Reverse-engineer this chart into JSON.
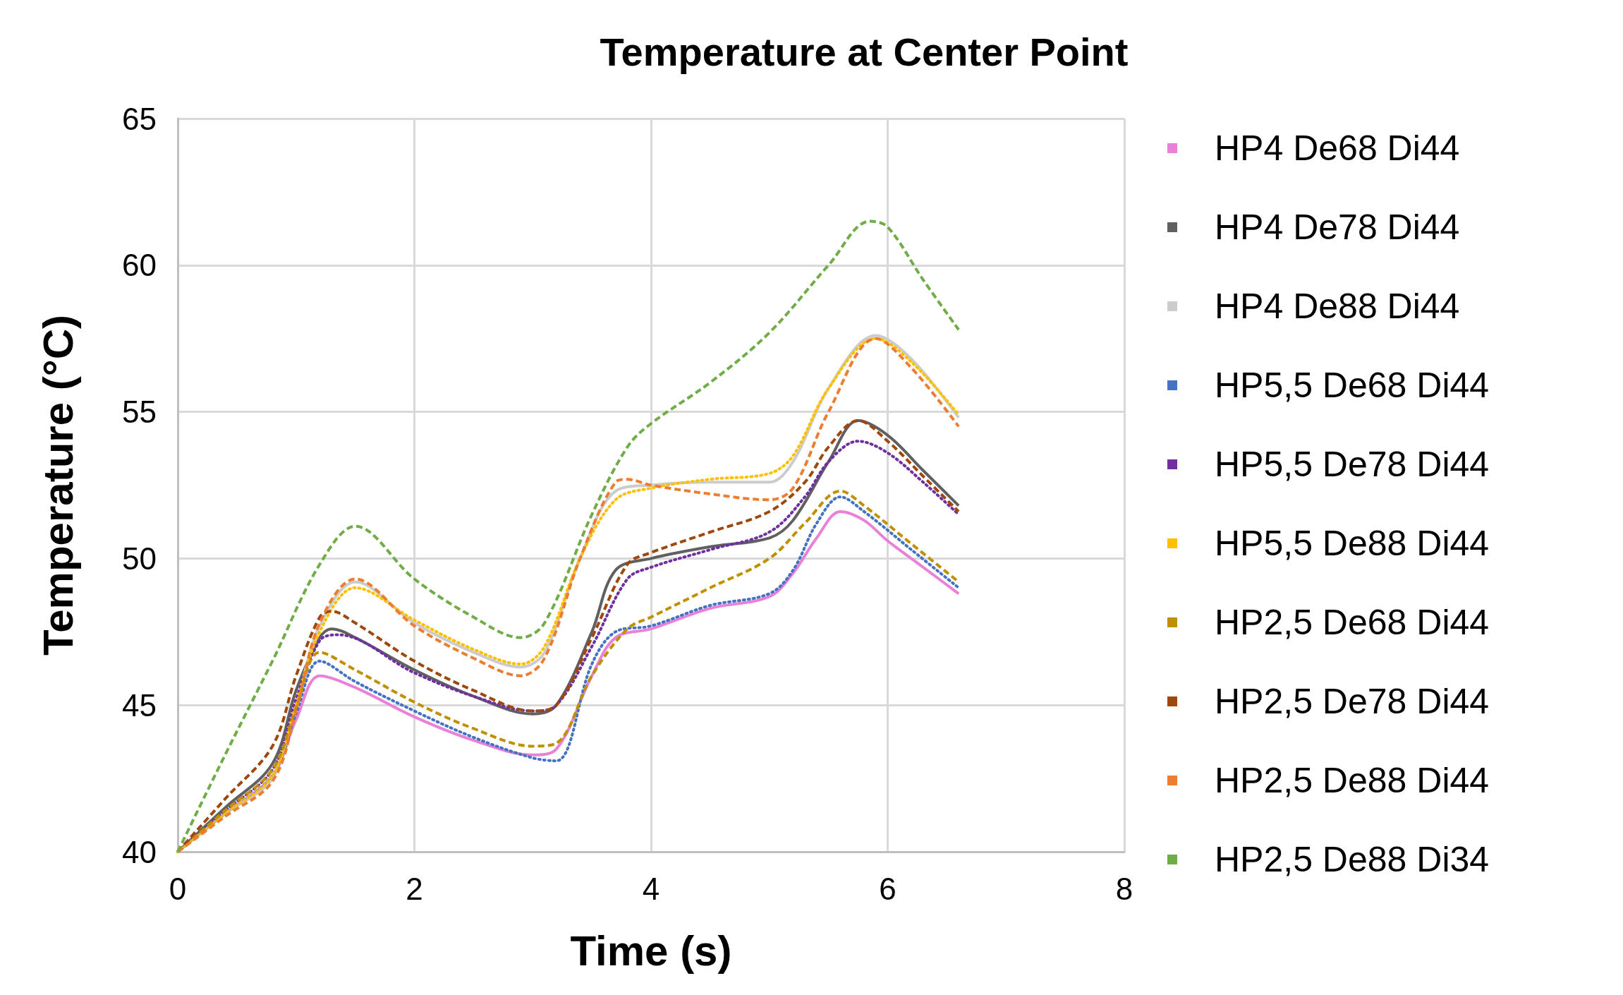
{
  "chart_data": {
    "type": "line",
    "title": "Temperature at Center Point",
    "xlabel": "Time (s)",
    "ylabel": "Temperature (°C)",
    "xlim": [
      0,
      8
    ],
    "xticks": [
      0,
      2,
      4,
      6,
      8
    ],
    "ylim": [
      40,
      65
    ],
    "yticks": [
      40,
      45,
      50,
      55,
      60,
      65
    ],
    "grid": true,
    "legend": "right",
    "marker": "none",
    "series": [
      {
        "name": "HP4 De68 Di44",
        "color": "#e981d6",
        "line_style": "solid",
        "x": [
          0,
          0.4,
          0.8,
          1.0,
          1.2,
          1.5,
          2,
          2.5,
          3.0,
          3.2,
          3.5,
          3.7,
          4,
          4.5,
          5.0,
          5.2,
          5.4,
          5.6,
          5.8,
          6.0,
          6.3,
          6.6
        ],
        "values": [
          40,
          41.3,
          42.6,
          44.5,
          46.0,
          45.6,
          44.6,
          43.8,
          43.3,
          43.5,
          46.0,
          47.3,
          47.6,
          48.3,
          48.7,
          49.5,
          50.7,
          51.6,
          51.3,
          50.6,
          49.7,
          48.8
        ]
      },
      {
        "name": "HP4 De78 Di44",
        "color": "#606060",
        "line_style": "solid",
        "x": [
          0,
          0.4,
          0.8,
          1.0,
          1.2,
          1.3,
          1.5,
          2,
          2.5,
          3.0,
          3.2,
          3.5,
          3.7,
          4,
          4.5,
          5.0,
          5.2,
          5.5,
          5.75,
          6.0,
          6.3,
          6.6
        ],
        "values": [
          40,
          41.5,
          43,
          45.5,
          47.3,
          47.6,
          47.3,
          46.2,
          45.3,
          44.7,
          45.0,
          47.5,
          49.6,
          50.0,
          50.4,
          50.7,
          51.3,
          53.3,
          54.7,
          54.2,
          53.0,
          51.8
        ]
      },
      {
        "name": "HP4 De88 Di44",
        "color": "#cccccc",
        "line_style": "solid",
        "x": [
          0,
          0.4,
          0.8,
          1.0,
          1.2,
          1.5,
          2,
          2.5,
          2.9,
          3.1,
          3.4,
          3.7,
          4,
          4.5,
          5.0,
          5.2,
          5.5,
          5.9,
          6.2,
          6.6
        ],
        "values": [
          40,
          41.3,
          42.5,
          45,
          47.7,
          49.2,
          47.8,
          46.8,
          46.3,
          46.8,
          50,
          52.3,
          52.5,
          52.6,
          52.6,
          53.3,
          55.8,
          57.6,
          56.8,
          54.8
        ]
      },
      {
        "name": "HP5,5 De68 Di44",
        "color": "#4472c4",
        "line_style": "dotted",
        "x": [
          0,
          0.4,
          0.8,
          1.0,
          1.2,
          1.5,
          2,
          2.5,
          3.0,
          3.2,
          3.5,
          3.7,
          4,
          4.5,
          5,
          5.2,
          5.4,
          5.6,
          5.8,
          6.2,
          6.6
        ],
        "values": [
          40,
          41.3,
          42.6,
          44.7,
          46.5,
          45.8,
          44.8,
          43.9,
          43.2,
          43.1,
          46.4,
          47.5,
          47.7,
          48.4,
          48.8,
          49.6,
          51.2,
          52.1,
          51.6,
          50.3,
          49.0
        ]
      },
      {
        "name": "HP5,5 De78 Di44",
        "color": "#7030a0",
        "line_style": "dotted",
        "x": [
          0,
          0.4,
          0.8,
          1.0,
          1.2,
          1.35,
          2,
          2.5,
          3,
          3.2,
          3.5,
          3.8,
          4,
          4.5,
          5,
          5.3,
          5.5,
          5.75,
          6,
          6.3,
          6.6
        ],
        "values": [
          40,
          41.4,
          42.8,
          45.2,
          47.2,
          47.4,
          46.1,
          45.3,
          44.8,
          45,
          47.0,
          49.3,
          49.7,
          50.3,
          50.9,
          52.1,
          53.3,
          54.0,
          53.6,
          52.6,
          51.5
        ]
      },
      {
        "name": "HP5,5 De88 Di44",
        "color": "#ffc000",
        "line_style": "dotted",
        "x": [
          0,
          0.4,
          0.8,
          1.0,
          1.2,
          1.5,
          2,
          2.5,
          2.9,
          3.1,
          3.4,
          3.7,
          4,
          4.5,
          5,
          5.2,
          5.5,
          5.9,
          6.2,
          6.6
        ],
        "values": [
          40,
          41.3,
          42.6,
          45,
          47.5,
          49.0,
          47.9,
          46.9,
          46.4,
          47,
          50,
          52.0,
          52.4,
          52.7,
          52.9,
          53.5,
          55.8,
          57.5,
          56.7,
          54.9
        ]
      },
      {
        "name": "HP2,5 De68 Di44",
        "color": "#bf9000",
        "line_style": "dashed",
        "x": [
          0,
          0.4,
          0.8,
          1.0,
          1.2,
          1.5,
          2,
          2.5,
          3.0,
          3.2,
          3.5,
          3.8,
          4,
          4.5,
          5,
          5.3,
          5.6,
          5.8,
          6.2,
          6.6
        ],
        "values": [
          40,
          41.4,
          42.8,
          44.9,
          46.8,
          46.2,
          45.1,
          44.2,
          43.6,
          43.7,
          46.0,
          47.6,
          48.0,
          49.0,
          50.0,
          51.2,
          52.3,
          51.8,
          50.5,
          49.2
        ]
      },
      {
        "name": "HP2,5 De78 Di44",
        "color": "#9e480e",
        "line_style": "dashed",
        "x": [
          0,
          0.4,
          0.8,
          1.0,
          1.2,
          1.3,
          1.5,
          2,
          2.5,
          3.0,
          3.2,
          3.5,
          3.8,
          4,
          4.5,
          5,
          5.3,
          5.5,
          5.75,
          6,
          6.3,
          6.6
        ],
        "values": [
          40,
          41.8,
          43.6,
          46.0,
          48.0,
          48.2,
          47.8,
          46.5,
          45.5,
          44.8,
          45.0,
          47.3,
          49.8,
          50.2,
          50.9,
          51.6,
          52.6,
          53.8,
          54.7,
          54.0,
          52.8,
          51.6
        ]
      },
      {
        "name": "HP2,5 De88 Di44",
        "color": "#ed7d31",
        "line_style": "dashed",
        "x": [
          0,
          0.4,
          0.8,
          1.0,
          1.2,
          1.5,
          2,
          2.5,
          2.9,
          3.1,
          3.4,
          3.7,
          3.8,
          4,
          4.5,
          5,
          5.2,
          5.5,
          5.9,
          6.2,
          6.6
        ],
        "values": [
          40,
          41.2,
          42.4,
          44.8,
          47.8,
          49.3,
          47.7,
          46.6,
          46.0,
          46.6,
          50.0,
          52.6,
          52.7,
          52.5,
          52.2,
          52.0,
          52.4,
          55.0,
          57.5,
          56.5,
          54.5
        ]
      },
      {
        "name": "HP2,5 De88 Di34",
        "color": "#70ad47",
        "line_style": "dashed",
        "x": [
          0,
          0.4,
          0.8,
          1.2,
          1.5,
          2,
          2.5,
          2.9,
          3.1,
          3.5,
          3.8,
          4,
          4.5,
          5,
          5.5,
          5.85,
          6.0,
          6.3,
          6.6
        ],
        "values": [
          40,
          43.3,
          46.5,
          49.8,
          51.1,
          49.3,
          48.0,
          47.3,
          47.8,
          51.5,
          53.8,
          54.6,
          56.0,
          57.7,
          60.0,
          61.5,
          61.3,
          59.5,
          57.8
        ]
      }
    ]
  }
}
